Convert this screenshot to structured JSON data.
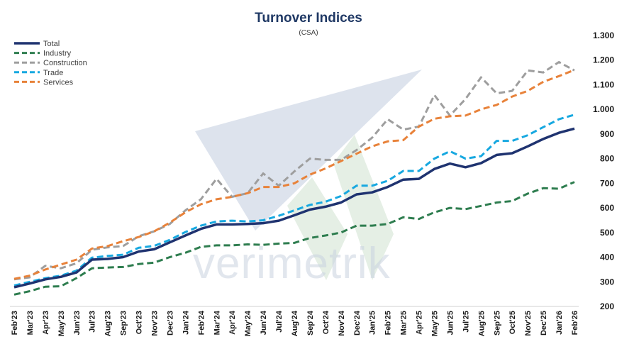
{
  "chart_data": {
    "type": "line",
    "title": "Turnover Indices",
    "subtitle": "(CSA)",
    "watermark": "verimetrik",
    "ylim": [
      200,
      1300
    ],
    "yticks": [
      200,
      300,
      400,
      500,
      600,
      700,
      800,
      900,
      1000,
      1100,
      1200,
      1300
    ],
    "ytick_labels": [
      "200",
      "300",
      "400",
      "500",
      "600",
      "700",
      "800",
      "900",
      "1.000",
      "1.100",
      "1.200",
      "1.300"
    ],
    "y_axis_position": "right",
    "grid": false,
    "legend_position": "top-left",
    "categories": [
      "Feb'23",
      "Mar'23",
      "Apr'23",
      "May'23",
      "Jun'23",
      "Jul'23",
      "Aug'23",
      "Sep'23",
      "Oct'23",
      "Nov'23",
      "Dec'23",
      "Jan'24",
      "Feb'24",
      "Mar'24",
      "Apr'24",
      "May'24",
      "Jun'24",
      "Jul'24",
      "Aug'24",
      "Sep'24",
      "Oct'24",
      "Nov'24",
      "Dec'24",
      "Jan'25",
      "Feb'25",
      "Mar'25",
      "Apr'25",
      "May'25",
      "Jun'25",
      "Jul'25",
      "Aug'25",
      "Sep'25",
      "Oct'25",
      "Nov'25",
      "Dec'25",
      "Jan'26",
      "Feb'26"
    ],
    "x_tick_labels": [
      "Feb'23",
      "Mar'23",
      "Apr'23",
      "May'23",
      "Jun'23",
      "Jul'23",
      "Aug'23",
      "Sep'23",
      "Oct'23",
      "Nov'23",
      "Dec'23",
      "Jan'24",
      "Feb'24",
      "Mar'24",
      "Apr'24",
      "May'24",
      "Jun'24",
      "Jul'24",
      "Aug'24",
      "Sep'24",
      "Oct'24",
      "Nov'24",
      "Dec'24",
      "Jan'25",
      "Feb'25",
      "Mar'25",
      "Apr'25",
      "May'25",
      "Jun'25",
      "Jul'25",
      "Aug'25",
      "Sep'25",
      "Oct'25",
      "Nov'25",
      "Dec'25",
      "Jan'26",
      "Feb'26"
    ],
    "series": [
      {
        "name": "Total",
        "color": "#1f3370",
        "dash": "solid",
        "values": [
          278,
          293,
          310,
          320,
          338,
          390,
          393,
          400,
          423,
          432,
          460,
          488,
          515,
          533,
          533,
          535,
          538,
          548,
          570,
          593,
          605,
          622,
          655,
          663,
          685,
          715,
          718,
          758,
          780,
          765,
          782,
          815,
          822,
          850,
          880,
          905,
          922
        ]
      },
      {
        "name": "Industry",
        "color": "#2e7d4f",
        "dash": "dashed",
        "values": [
          248,
          262,
          280,
          282,
          315,
          355,
          358,
          360,
          372,
          378,
          400,
          418,
          442,
          448,
          448,
          452,
          450,
          455,
          458,
          478,
          488,
          500,
          528,
          528,
          535,
          562,
          555,
          582,
          600,
          595,
          608,
          622,
          628,
          658,
          680,
          678,
          705
        ]
      },
      {
        "name": "Construction",
        "color": "#9e9e9e",
        "dash": "dashed",
        "values": [
          310,
          318,
          365,
          355,
          375,
          430,
          440,
          445,
          485,
          505,
          535,
          590,
          635,
          718,
          645,
          660,
          740,
          690,
          748,
          800,
          795,
          795,
          835,
          885,
          960,
          918,
          930,
          1058,
          975,
          1042,
          1130,
          1065,
          1075,
          1158,
          1150,
          1192,
          1158
        ]
      },
      {
        "name": "Trade",
        "color": "#17a8e0",
        "dash": "dashed",
        "values": [
          285,
          300,
          315,
          325,
          345,
          398,
          405,
          410,
          438,
          446,
          470,
          502,
          528,
          545,
          548,
          545,
          550,
          568,
          590,
          612,
          625,
          648,
          690,
          690,
          710,
          750,
          750,
          800,
          830,
          800,
          810,
          872,
          872,
          895,
          928,
          960,
          978
        ]
      },
      {
        "name": "Services",
        "color": "#e8823a",
        "dash": "dashed",
        "values": [
          312,
          325,
          350,
          370,
          390,
          435,
          445,
          465,
          482,
          505,
          540,
          582,
          615,
          635,
          645,
          660,
          685,
          685,
          700,
          735,
          760,
          790,
          820,
          850,
          870,
          875,
          930,
          962,
          972,
          975,
          1000,
          1018,
          1052,
          1075,
          1112,
          1135,
          1160
        ]
      }
    ]
  }
}
